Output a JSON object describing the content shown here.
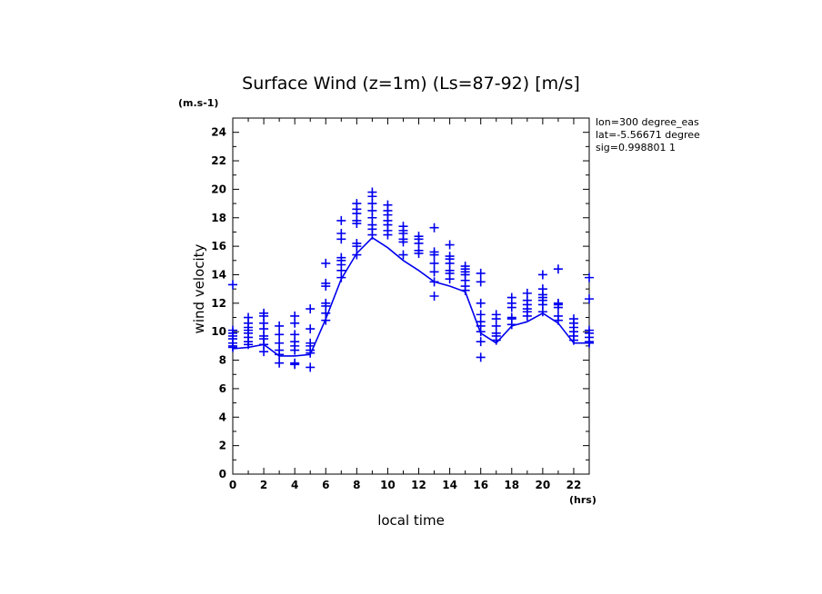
{
  "chart_data": {
    "type": "line",
    "title": "Surface Wind (z=1m) (Ls=87-92) [m/s]",
    "xlabel": "local time",
    "ylabel": "wind velocity",
    "x_unit": "(hrs)",
    "y_unit": "(m.s-1)",
    "xlim": [
      0,
      23
    ],
    "ylim": [
      0,
      25
    ],
    "xticks": [
      0,
      2,
      4,
      6,
      8,
      10,
      12,
      14,
      16,
      18,
      20,
      22
    ],
    "yticks": [
      0,
      2,
      4,
      6,
      8,
      10,
      12,
      14,
      16,
      18,
      20,
      22,
      24
    ],
    "grid": false,
    "info_lines": [
      "lon=300 degree_eas",
      "lat=-5.56671 degree",
      "sig=0.998801 1"
    ],
    "color": "#0000ee",
    "mean_line": {
      "x": [
        0,
        1,
        2,
        3,
        4,
        5,
        6,
        7,
        8,
        9,
        10,
        11,
        12,
        13,
        14,
        15,
        16,
        17,
        18,
        19,
        20,
        21,
        22,
        23
      ],
      "y": [
        8.8,
        8.9,
        9.1,
        8.3,
        8.3,
        8.4,
        10.9,
        13.7,
        15.5,
        16.6,
        15.9,
        15.0,
        14.3,
        13.5,
        13.2,
        12.8,
        9.9,
        9.2,
        10.4,
        10.7,
        11.3,
        10.6,
        9.2,
        9.2
      ]
    },
    "samples": [
      {
        "x": 0,
        "y": [
          13.3,
          10.1,
          9.9,
          9.7,
          9.5,
          9.2,
          9.0,
          8.9
        ]
      },
      {
        "x": 1,
        "y": [
          11.0,
          10.6,
          10.3,
          10.1,
          9.9,
          9.6,
          9.3,
          9.1
        ]
      },
      {
        "x": 2,
        "y": [
          11.3,
          11.1,
          10.6,
          10.2,
          9.7,
          9.5,
          9.1,
          8.6
        ]
      },
      {
        "x": 3,
        "y": [
          10.4,
          9.8,
          9.2,
          8.7,
          8.4,
          7.8
        ]
      },
      {
        "x": 4,
        "y": [
          11.1,
          10.6,
          9.8,
          9.3,
          9.0,
          8.7,
          7.8,
          7.7
        ]
      },
      {
        "x": 5,
        "y": [
          11.6,
          10.2,
          9.2,
          9.0,
          8.7,
          8.5,
          7.5
        ]
      },
      {
        "x": 6,
        "y": [
          14.8,
          13.4,
          13.2,
          12.0,
          11.8,
          11.3,
          10.8
        ]
      },
      {
        "x": 7,
        "y": [
          17.8,
          16.9,
          16.5,
          15.2,
          15.0,
          14.7,
          14.3,
          13.8
        ]
      },
      {
        "x": 8,
        "y": [
          19.0,
          18.6,
          18.3,
          17.8,
          17.6,
          16.2,
          16.0,
          15.4
        ]
      },
      {
        "x": 9,
        "y": [
          19.8,
          19.5,
          19.0,
          18.5,
          18.0,
          17.5,
          17.2,
          16.8
        ]
      },
      {
        "x": 10,
        "y": [
          18.9,
          18.5,
          18.2,
          17.8,
          17.5,
          17.1,
          16.8
        ]
      },
      {
        "x": 11,
        "y": [
          17.4,
          17.1,
          16.9,
          16.5,
          16.3,
          15.4
        ]
      },
      {
        "x": 12,
        "y": [
          16.7,
          16.5,
          16.2,
          15.7,
          15.5
        ]
      },
      {
        "x": 13,
        "y": [
          17.3,
          15.6,
          15.4,
          14.8,
          14.2,
          13.5,
          12.5
        ]
      },
      {
        "x": 14,
        "y": [
          16.1,
          15.3,
          15.1,
          14.8,
          14.3,
          14.1,
          13.7
        ]
      },
      {
        "x": 15,
        "y": [
          14.6,
          14.4,
          14.2,
          14.0,
          13.6,
          13.2,
          12.9
        ]
      },
      {
        "x": 16,
        "y": [
          14.1,
          13.5,
          12.0,
          11.2,
          10.7,
          10.4,
          10.0,
          9.3,
          8.2
        ]
      },
      {
        "x": 17,
        "y": [
          11.2,
          10.9,
          10.4,
          9.9,
          9.7,
          9.4
        ]
      },
      {
        "x": 18,
        "y": [
          12.4,
          12.0,
          11.7,
          11.0,
          10.9,
          10.5
        ]
      },
      {
        "x": 19,
        "y": [
          12.7,
          12.2,
          11.9,
          11.6,
          11.4,
          11.1
        ]
      },
      {
        "x": 20,
        "y": [
          14.0,
          13.0,
          12.6,
          12.4,
          12.2,
          11.9,
          11.4
        ]
      },
      {
        "x": 21,
        "y": [
          14.4,
          12.0,
          11.9,
          11.7,
          11.1,
          10.8
        ]
      },
      {
        "x": 22,
        "y": [
          10.9,
          10.6,
          10.3,
          10.0,
          9.7,
          9.4
        ]
      },
      {
        "x": 23,
        "y": [
          13.8,
          12.3,
          10.1,
          9.9,
          9.6,
          9.3,
          9.2
        ]
      }
    ]
  }
}
